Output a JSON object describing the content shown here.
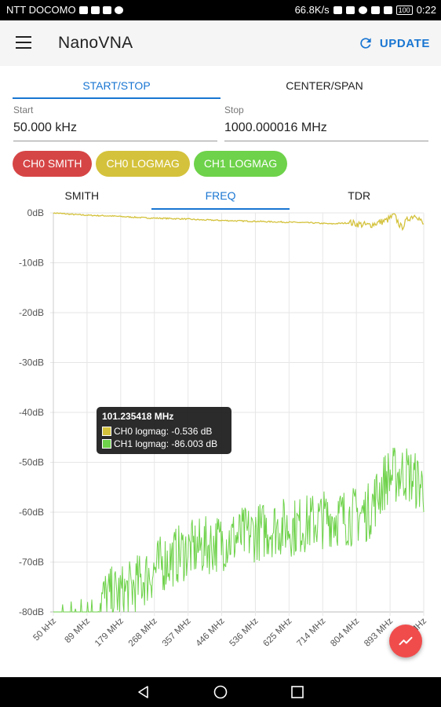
{
  "status_bar": {
    "carrier": "NTT DOCOMO",
    "speed": "66.8K/s",
    "battery": "100",
    "time": "0:22"
  },
  "appbar": {
    "title": "NanoVNA",
    "update_label": "UPDATE"
  },
  "range_tabs": [
    "START/STOP",
    "CENTER/SPAN"
  ],
  "fields": {
    "start_label": "Start",
    "start_value": "50.000 kHz",
    "stop_label": "Stop",
    "stop_value": "1000.000016 MHz"
  },
  "channels": [
    {
      "label": "CH0 SMITH",
      "color": "#d64545"
    },
    {
      "label": "CH0 LOGMAG",
      "color": "#d4c23c"
    },
    {
      "label": "CH1 LOGMAG",
      "color": "#6ed24a"
    }
  ],
  "view_tabs": [
    "SMITH",
    "FREQ",
    "TDR"
  ],
  "tooltip": {
    "title": "101.235418 MHz",
    "row1": "CH0 logmag: -0.536 dB",
    "row2": "CH1 logmag: -86.003 dB"
  },
  "colors": {
    "accent": "#1976d2",
    "ch0": "#d4c23c",
    "ch1": "#6ed24a",
    "fab": "#f04c4c"
  },
  "icons": {
    "menu": "hamburger-menu-icon",
    "update": "refresh-icon",
    "fab": "trend-chart-icon"
  },
  "chart_data": {
    "type": "line",
    "ylim": [
      -80,
      0
    ],
    "y_ticks": [
      "0dB",
      "-10dB",
      "-20dB",
      "-30dB",
      "-40dB",
      "-50dB",
      "-60dB",
      "-70dB",
      "-80dB"
    ],
    "x_ticks": [
      "50 kHz",
      "89 MHz",
      "179 MHz",
      "268 MHz",
      "357 MHz",
      "446 MHz",
      "536 MHz",
      "625 MHz",
      "714 MHz",
      "804 MHz",
      "893 MHz",
      "1000 MHz"
    ],
    "xlim_mhz": [
      0.05,
      1000
    ],
    "series": [
      {
        "name": "CH0 logmag",
        "color": "#d4c23c",
        "x_mhz": [
          0.05,
          50,
          100,
          150,
          200,
          250,
          300,
          350,
          400,
          450,
          500,
          550,
          600,
          650,
          700,
          750,
          800,
          850,
          900,
          920,
          940,
          960,
          980,
          1000
        ],
        "y_db": [
          0,
          -0.3,
          -0.5,
          -0.6,
          -0.8,
          -1.0,
          -1.1,
          -1.2,
          -1.4,
          -1.5,
          -1.6,
          -1.7,
          -1.8,
          -1.9,
          -2.0,
          -2.2,
          -2.0,
          -2.5,
          -1.5,
          -0.5,
          -3.0,
          -1.0,
          -0.3,
          -2.5
        ]
      },
      {
        "name": "CH1 logmag",
        "color": "#6ed24a",
        "x_mhz": [
          0.05,
          100,
          150,
          200,
          250,
          300,
          350,
          400,
          450,
          500,
          550,
          600,
          650,
          700,
          750,
          800,
          850,
          900,
          950,
          1000
        ],
        "y_db": [
          -80,
          -78,
          -77,
          -76,
          -73,
          -70,
          -68,
          -67,
          -66,
          -65,
          -64,
          -63,
          -63,
          -62,
          -61,
          -61,
          -60,
          -53,
          -52,
          -55
        ]
      }
    ]
  }
}
